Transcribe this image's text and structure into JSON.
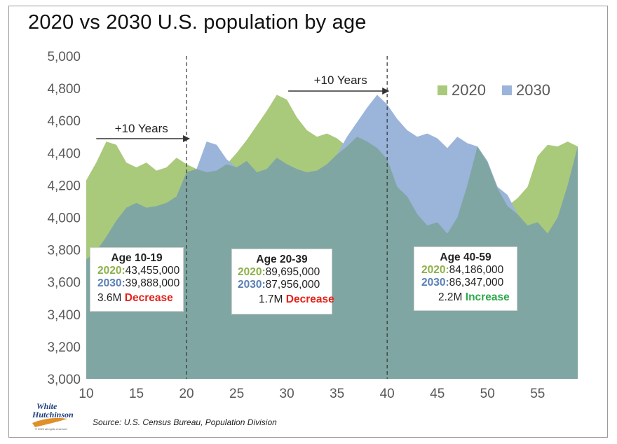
{
  "logo": {
    "line1": "White",
    "line2": "Hutchinson",
    "tagline": "© 2020 all rights reserved"
  },
  "source": "Source: U.S. Census Bureau, Population Division",
  "chart_data": {
    "type": "area",
    "title": "2020 vs 2030 U.S. population by age",
    "xlabel": "",
    "ylabel": "",
    "xlim": [
      10,
      59
    ],
    "ylim": [
      3000,
      5000
    ],
    "y_ticks": [
      "3,000",
      "3,200",
      "3,400",
      "3,600",
      "3,800",
      "4,000",
      "4,200",
      "4,400",
      "4,600",
      "4,800",
      "5,000"
    ],
    "x_ticks": [
      "10",
      "15",
      "20",
      "25",
      "30",
      "35",
      "40",
      "45",
      "50",
      "55"
    ],
    "x": [
      10,
      11,
      12,
      13,
      14,
      15,
      16,
      17,
      18,
      19,
      20,
      21,
      22,
      23,
      24,
      25,
      26,
      27,
      28,
      29,
      30,
      31,
      32,
      33,
      34,
      35,
      36,
      37,
      38,
      39,
      40,
      41,
      42,
      43,
      44,
      45,
      46,
      47,
      48,
      49,
      50,
      51,
      52,
      53,
      54,
      55,
      56,
      57,
      58,
      59
    ],
    "series": [
      {
        "name": "2020",
        "color": "#a9c97b",
        "values": [
          4230,
          4340,
          4470,
          4450,
          4340,
          4310,
          4340,
          4290,
          4310,
          4370,
          4330,
          4300,
          4280,
          4290,
          4330,
          4400,
          4480,
          4570,
          4660,
          4760,
          4730,
          4620,
          4540,
          4500,
          4520,
          4490,
          4440,
          4500,
          4470,
          4430,
          4360,
          4190,
          4130,
          4020,
          3950,
          3970,
          3900,
          4000,
          4200,
          4440,
          4340,
          4180,
          4070,
          4120,
          4190,
          4380,
          4450,
          4440,
          4470,
          4440
        ]
      },
      {
        "name": "2030",
        "color": "#9ab4da",
        "values": [
          3740,
          3790,
          3880,
          3980,
          4060,
          4090,
          4060,
          4070,
          4090,
          4130,
          4280,
          4300,
          4470,
          4450,
          4360,
          4310,
          4350,
          4280,
          4300,
          4370,
          4330,
          4300,
          4280,
          4290,
          4330,
          4390,
          4500,
          4590,
          4680,
          4760,
          4700,
          4610,
          4540,
          4500,
          4520,
          4490,
          4430,
          4500,
          4460,
          4440,
          4350,
          4190,
          4140,
          4020,
          3950,
          3970,
          3900,
          4000,
          4200,
          4440
        ]
      }
    ],
    "legend": {
      "position": "top-right",
      "entries": [
        "2020",
        "2030"
      ]
    },
    "overlap_color": "#7fa6a2",
    "annotations": {
      "arrow1": "+10 Years",
      "arrow2": "+10 Years",
      "vlines_at": [
        20,
        40
      ],
      "arrow1_from_to": [
        11,
        20
      ],
      "arrow2_from_to": [
        30,
        40
      ]
    },
    "boxes": [
      {
        "header": "Age 10-19",
        "label2020": "2020:",
        "value2020": "43,455,000",
        "label2030": "2030:",
        "value2030": "39,888,000",
        "change": "3.6M",
        "change_word": "Decrease"
      },
      {
        "header": "Age 20-39",
        "label2020": "2020:",
        "value2020": "89,695,000",
        "label2030": "2030:",
        "value2030": "87,956,000",
        "change": "1.7M",
        "change_word": "Decrease"
      },
      {
        "header": "Age 40-59",
        "label2020": "2020:",
        "value2020": "84,186,000",
        "label2030": "2030:",
        "value2030": "86,347,000",
        "change": "2.2M",
        "change_word": "Increase"
      }
    ]
  }
}
